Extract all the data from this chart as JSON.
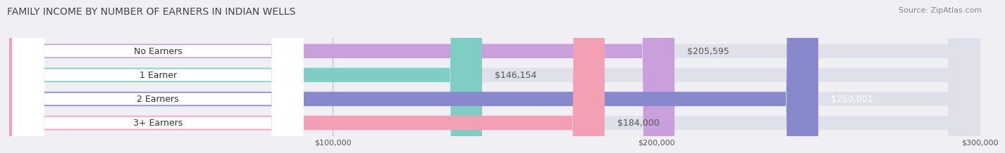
{
  "title": "FAMILY INCOME BY NUMBER OF EARNERS IN INDIAN WELLS",
  "source": "Source: ZipAtlas.com",
  "categories": [
    "No Earners",
    "1 Earner",
    "2 Earners",
    "3+ Earners"
  ],
  "values": [
    205595,
    146154,
    250001,
    184000
  ],
  "value_labels": [
    "$205,595",
    "$146,154",
    "$250,001",
    "$184,000"
  ],
  "bar_colors": [
    "#c9a0dc",
    "#7ecec4",
    "#8888cc",
    "#f4a0b4"
  ],
  "label_colors": [
    "#555555",
    "#555555",
    "#ffffff",
    "#555555"
  ],
  "background_color": "#f0f0f4",
  "xlim": [
    0,
    300000
  ],
  "xtick_labels": [
    "$100,000",
    "$200,000",
    "$300,000"
  ],
  "title_fontsize": 10,
  "source_fontsize": 8,
  "label_fontsize": 9,
  "bar_height": 0.6,
  "fig_width": 14.06,
  "fig_height": 2.33
}
